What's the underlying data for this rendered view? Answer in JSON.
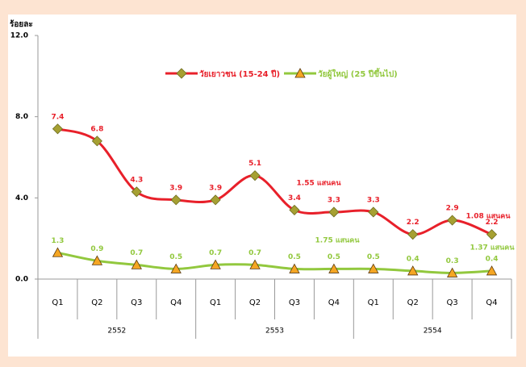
{
  "chart_data": {
    "type": "line",
    "y_label": "ร้อยละ",
    "categories": [
      "Q1",
      "Q2",
      "Q3",
      "Q4",
      "Q1",
      "Q2",
      "Q3",
      "Q4",
      "Q1",
      "Q2",
      "Q3",
      "Q4"
    ],
    "years": [
      "2552",
      "2553",
      "2554"
    ],
    "ylim": [
      0,
      12
    ],
    "yticks": [
      {
        "value": 0,
        "label": "0.0"
      },
      {
        "value": 4,
        "label": "4.0"
      },
      {
        "value": 8,
        "label": "8.0"
      },
      {
        "value": 12,
        "label": "12.0"
      }
    ],
    "series": [
      {
        "name": "วัยเยาวชน (15-24 ปี)",
        "color": "#e8202a",
        "marker": "diamond",
        "marker_color": "#a6a032",
        "values": [
          7.4,
          6.8,
          4.3,
          3.9,
          3.9,
          5.1,
          3.4,
          3.3,
          3.3,
          2.2,
          2.9,
          2.2
        ]
      },
      {
        "name": "วัยผู้ใหญ่ (25 ปีขึ้นไป)",
        "color": "#92c83e",
        "marker": "triangle",
        "marker_color": "#f5a623",
        "values": [
          1.3,
          0.9,
          0.7,
          0.5,
          0.7,
          0.7,
          0.5,
          0.5,
          0.5,
          0.4,
          0.3,
          0.4
        ]
      }
    ],
    "annotations": [
      {
        "text": "1.55 แสนคน",
        "color": "#e8202a"
      },
      {
        "text": "1.08 แสนคน",
        "color": "#e8202a"
      },
      {
        "text": "1.75 แสนคน",
        "color": "#92c83e"
      },
      {
        "text": "1.37 แสนคน",
        "color": "#92c83e"
      }
    ]
  }
}
